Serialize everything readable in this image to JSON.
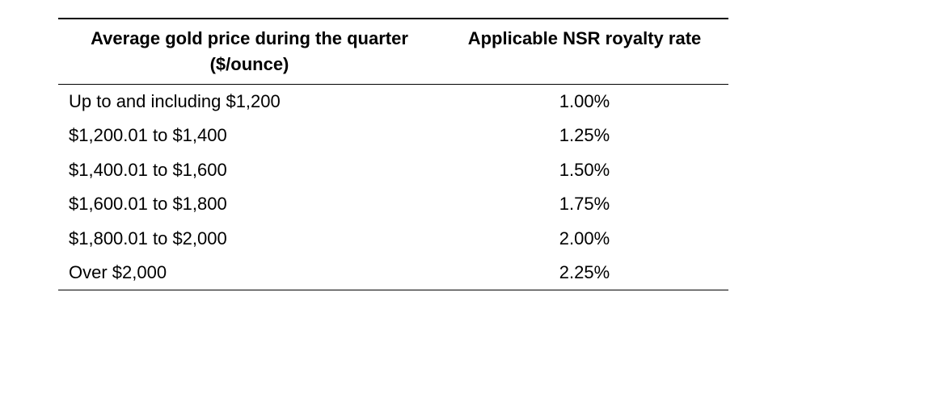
{
  "table": {
    "header": {
      "price_column_line1": "Average gold price during the quarter",
      "price_column_line2": "($/ounce)",
      "rate_column": "Applicable NSR royalty rate"
    },
    "rows": [
      {
        "price_range": "Up to and including $1,200",
        "royalty_rate": "1.00%"
      },
      {
        "price_range": "$1,200.01 to $1,400",
        "royalty_rate": "1.25%"
      },
      {
        "price_range": "$1,400.01 to $1,600",
        "royalty_rate": "1.50%"
      },
      {
        "price_range": "$1,600.01 to $1,800",
        "royalty_rate": "1.75%"
      },
      {
        "price_range": "$1,800.01 to $2,000",
        "royalty_rate": "2.00%"
      },
      {
        "price_range": "Over $2,000",
        "royalty_rate": "2.25%"
      }
    ]
  },
  "colors": {
    "background": "#ffffff",
    "text": "#000000",
    "rule": "#000000"
  }
}
